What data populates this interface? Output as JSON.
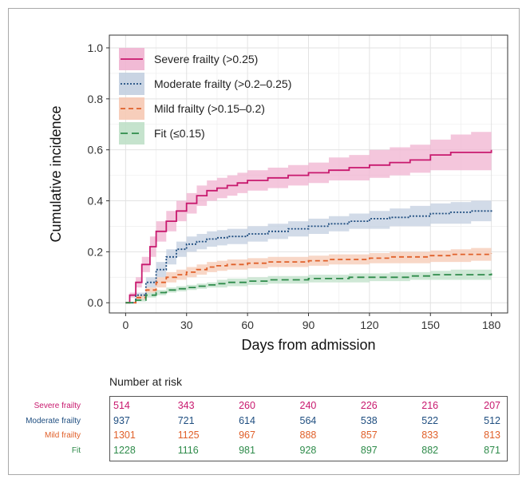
{
  "chart_data": {
    "type": "line",
    "xlabel": "Days from admission",
    "ylabel": "Cumulative incidence",
    "xlim": [
      -8,
      188
    ],
    "ylim": [
      -0.04,
      1.05
    ],
    "xticks": [
      0,
      30,
      60,
      90,
      120,
      150,
      180
    ],
    "yticks": [
      0.0,
      0.2,
      0.4,
      0.6,
      0.8,
      1.0
    ],
    "ytick_labels": [
      "0.0",
      "0.2",
      "0.4",
      "0.6",
      "0.8",
      "1.0"
    ],
    "grid": true,
    "legend_position": "top-left",
    "series": [
      {
        "name": "Severe frailty (>0.25)",
        "color": "#c8196e",
        "band_color": "#f0b3d0",
        "dash": "solid",
        "x": [
          0,
          2,
          5,
          8,
          12,
          15,
          20,
          25,
          30,
          35,
          40,
          45,
          50,
          55,
          60,
          70,
          80,
          90,
          100,
          110,
          120,
          130,
          140,
          150,
          160,
          170,
          180
        ],
        "y": [
          0.0,
          0.03,
          0.08,
          0.15,
          0.22,
          0.28,
          0.32,
          0.36,
          0.39,
          0.42,
          0.44,
          0.45,
          0.46,
          0.47,
          0.48,
          0.49,
          0.5,
          0.51,
          0.52,
          0.53,
          0.54,
          0.55,
          0.56,
          0.58,
          0.59,
          0.59,
          0.6
        ],
        "lower": [
          0.0,
          0.02,
          0.06,
          0.12,
          0.18,
          0.24,
          0.28,
          0.32,
          0.35,
          0.38,
          0.4,
          0.41,
          0.42,
          0.43,
          0.44,
          0.45,
          0.46,
          0.47,
          0.48,
          0.48,
          0.49,
          0.5,
          0.51,
          0.52,
          0.52,
          0.52,
          0.52
        ],
        "upper": [
          0.0,
          0.04,
          0.1,
          0.18,
          0.26,
          0.32,
          0.36,
          0.4,
          0.43,
          0.46,
          0.48,
          0.49,
          0.5,
          0.51,
          0.52,
          0.53,
          0.54,
          0.55,
          0.57,
          0.58,
          0.6,
          0.61,
          0.62,
          0.64,
          0.66,
          0.67,
          0.68
        ]
      },
      {
        "name": "Moderate frailty (>0.2–0.25)",
        "color": "#1f4e80",
        "band_color": "#c3cfe0",
        "dash": "dotted",
        "x": [
          0,
          5,
          10,
          15,
          20,
          25,
          30,
          35,
          40,
          45,
          50,
          60,
          70,
          80,
          90,
          100,
          110,
          120,
          130,
          140,
          150,
          160,
          170,
          180
        ],
        "y": [
          0.0,
          0.03,
          0.08,
          0.13,
          0.18,
          0.21,
          0.23,
          0.24,
          0.25,
          0.255,
          0.26,
          0.27,
          0.28,
          0.29,
          0.3,
          0.31,
          0.32,
          0.33,
          0.335,
          0.34,
          0.35,
          0.355,
          0.36,
          0.365
        ],
        "lower": [
          0.0,
          0.02,
          0.06,
          0.1,
          0.15,
          0.18,
          0.2,
          0.21,
          0.22,
          0.225,
          0.23,
          0.24,
          0.25,
          0.26,
          0.27,
          0.28,
          0.29,
          0.29,
          0.3,
          0.3,
          0.31,
          0.31,
          0.32,
          0.33
        ],
        "upper": [
          0.0,
          0.04,
          0.1,
          0.16,
          0.21,
          0.24,
          0.26,
          0.27,
          0.28,
          0.285,
          0.29,
          0.3,
          0.31,
          0.32,
          0.33,
          0.34,
          0.35,
          0.36,
          0.37,
          0.38,
          0.39,
          0.395,
          0.4,
          0.405
        ]
      },
      {
        "name": "Mild frailty (>0.15–0.2)",
        "color": "#e0602a",
        "band_color": "#f6c9b4",
        "dash": "dashed",
        "x": [
          0,
          5,
          10,
          15,
          20,
          25,
          30,
          35,
          40,
          45,
          50,
          60,
          70,
          80,
          90,
          100,
          110,
          120,
          130,
          140,
          150,
          160,
          170,
          180
        ],
        "y": [
          0.0,
          0.02,
          0.05,
          0.08,
          0.1,
          0.11,
          0.12,
          0.13,
          0.14,
          0.145,
          0.15,
          0.155,
          0.16,
          0.16,
          0.165,
          0.17,
          0.17,
          0.175,
          0.18,
          0.18,
          0.185,
          0.19,
          0.19,
          0.195
        ],
        "lower": [
          0.0,
          0.01,
          0.04,
          0.06,
          0.08,
          0.09,
          0.1,
          0.11,
          0.12,
          0.125,
          0.13,
          0.135,
          0.14,
          0.14,
          0.145,
          0.15,
          0.15,
          0.155,
          0.155,
          0.155,
          0.16,
          0.16,
          0.165,
          0.17
        ],
        "upper": [
          0.0,
          0.03,
          0.06,
          0.1,
          0.12,
          0.13,
          0.14,
          0.15,
          0.16,
          0.165,
          0.17,
          0.175,
          0.18,
          0.18,
          0.185,
          0.19,
          0.19,
          0.195,
          0.2,
          0.2,
          0.205,
          0.21,
          0.215,
          0.22
        ]
      },
      {
        "name": "Fit (≤0.15)",
        "color": "#2e8b4a",
        "band_color": "#bfe0c8",
        "dash": "longdash",
        "x": [
          0,
          5,
          10,
          15,
          20,
          25,
          30,
          35,
          40,
          45,
          50,
          60,
          70,
          80,
          90,
          100,
          110,
          120,
          130,
          140,
          150,
          160,
          170,
          180
        ],
        "y": [
          0.0,
          0.01,
          0.03,
          0.04,
          0.05,
          0.055,
          0.06,
          0.065,
          0.07,
          0.075,
          0.08,
          0.085,
          0.09,
          0.09,
          0.095,
          0.095,
          0.1,
          0.1,
          0.1,
          0.105,
          0.11,
          0.11,
          0.11,
          0.115
        ],
        "lower": [
          0.0,
          0.005,
          0.02,
          0.03,
          0.04,
          0.045,
          0.05,
          0.055,
          0.06,
          0.06,
          0.065,
          0.07,
          0.075,
          0.075,
          0.08,
          0.08,
          0.08,
          0.085,
          0.085,
          0.09,
          0.09,
          0.09,
          0.09,
          0.095
        ],
        "upper": [
          0.0,
          0.015,
          0.04,
          0.05,
          0.06,
          0.065,
          0.07,
          0.075,
          0.08,
          0.09,
          0.095,
          0.1,
          0.105,
          0.105,
          0.11,
          0.11,
          0.115,
          0.115,
          0.12,
          0.12,
          0.125,
          0.13,
          0.13,
          0.135
        ]
      }
    ]
  },
  "risk_table": {
    "title": "Number at risk",
    "rows": [
      {
        "label": "Severe frailty",
        "color": "#c8196e",
        "values": [
          "514",
          "343",
          "260",
          "240",
          "226",
          "216",
          "207"
        ]
      },
      {
        "label": "Moderate frailty",
        "color": "#1f4e80",
        "values": [
          "937",
          "721",
          "614",
          "564",
          "538",
          "522",
          "512"
        ]
      },
      {
        "label": "Mild frailty",
        "color": "#e0602a",
        "values": [
          "1301",
          "1125",
          "967",
          "888",
          "857",
          "833",
          "813"
        ]
      },
      {
        "label": "Fit",
        "color": "#2e8b4a",
        "values": [
          "1228",
          "1116",
          "981",
          "928",
          "897",
          "882",
          "871"
        ]
      }
    ]
  }
}
